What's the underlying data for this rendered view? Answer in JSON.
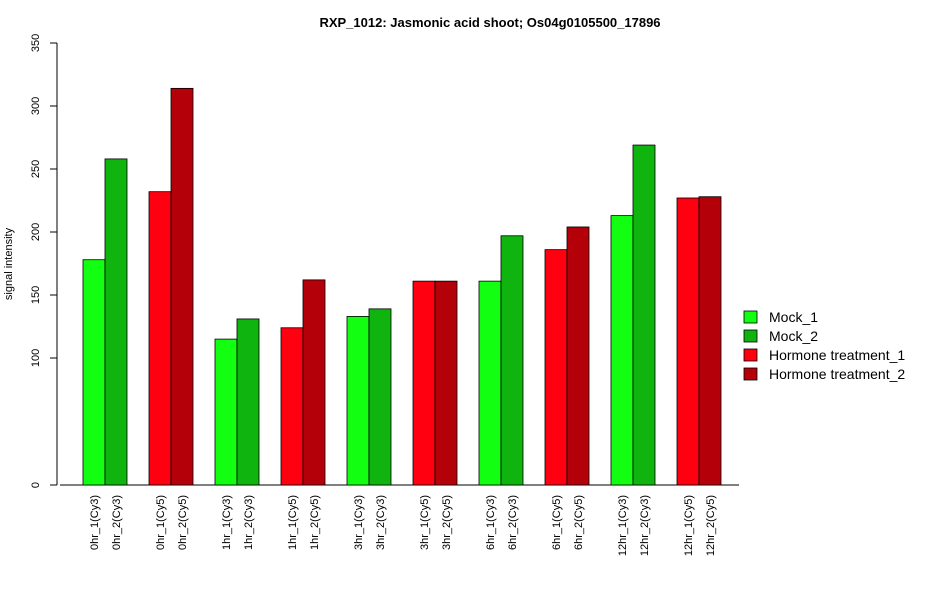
{
  "chart_data": {
    "type": "bar",
    "title": "RXP_1012: Jasmonic acid shoot; Os04g0105500_17896",
    "ylabel": "signal intensity",
    "yticks": [
      0,
      100,
      150,
      200,
      250,
      300,
      350
    ],
    "categories": [
      "0hr_1(Cy3)",
      "0hr_2(Cy3)",
      "0hr_1(Cy5)",
      "0hr_2(Cy5)",
      "1hr_1(Cy3)",
      "1hr_2(Cy3)",
      "1hr_1(Cy5)",
      "1hr_2(Cy5)",
      "3hr_1(Cy3)",
      "3hr_2(Cy3)",
      "3hr_1(Cy5)",
      "3hr_2(Cy5)",
      "6hr_1(Cy3)",
      "6hr_2(Cy3)",
      "6hr_1(Cy5)",
      "6hr_2(Cy5)",
      "12hr_1(Cy3)",
      "12hr_2(Cy3)",
      "12hr_1(Cy5)",
      "12hr_2(Cy5)"
    ],
    "values": [
      178,
      258,
      232,
      314,
      115,
      131,
      124,
      162,
      133,
      139,
      161,
      161,
      161,
      197,
      186,
      204,
      213,
      269,
      227,
      228
    ],
    "bar_series": [
      0,
      1,
      2,
      3,
      0,
      1,
      2,
      3,
      0,
      1,
      2,
      3,
      0,
      1,
      2,
      3,
      0,
      1,
      2,
      3
    ],
    "series": [
      {
        "name": "Mock_1",
        "color": "#12ff12"
      },
      {
        "name": "Mock_2",
        "color": "#0fb40f"
      },
      {
        "name": "Hormone treatment_1",
        "color": "#ff0010"
      },
      {
        "name": "Hormone treatment_2",
        "color": "#b40008"
      }
    ],
    "legend_position": "right",
    "grid": false
  }
}
